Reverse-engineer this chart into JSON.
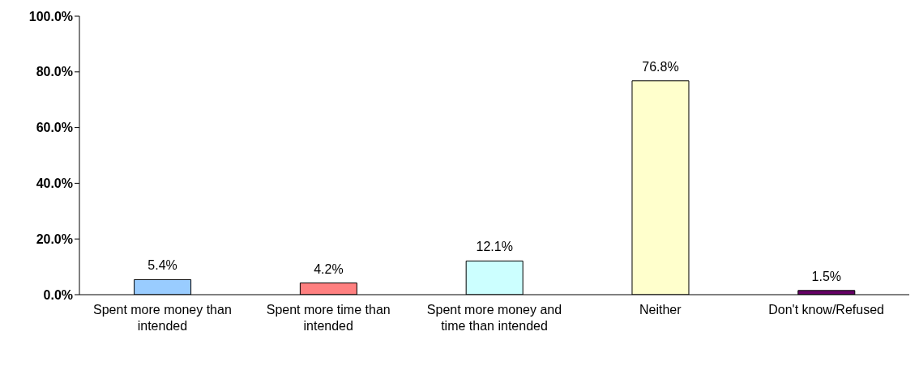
{
  "chart_data": {
    "type": "bar",
    "categories": [
      "Spent more money than intended",
      "Spent more time than intended",
      "Spent more money and time than intended",
      "Neither",
      "Don't know/Refused"
    ],
    "values": [
      5.4,
      4.2,
      12.1,
      76.8,
      1.5
    ],
    "colors": [
      "#99ccff",
      "#ff8080",
      "#ccffff",
      "#ffffcc",
      "#660066"
    ],
    "value_labels": [
      "5.4%",
      "4.2%",
      "12.1%",
      "76.8%",
      "1.5%"
    ],
    "ylim": [
      0,
      100
    ],
    "yticks": [
      {
        "value": 0,
        "label": "0.0%"
      },
      {
        "value": 20,
        "label": "20.0%"
      },
      {
        "value": 40,
        "label": "40.0%"
      },
      {
        "value": 60,
        "label": "60.0%"
      },
      {
        "value": 80,
        "label": "80.0%"
      },
      {
        "value": 100,
        "label": "100.0%"
      }
    ],
    "grid": false,
    "legend": false
  }
}
